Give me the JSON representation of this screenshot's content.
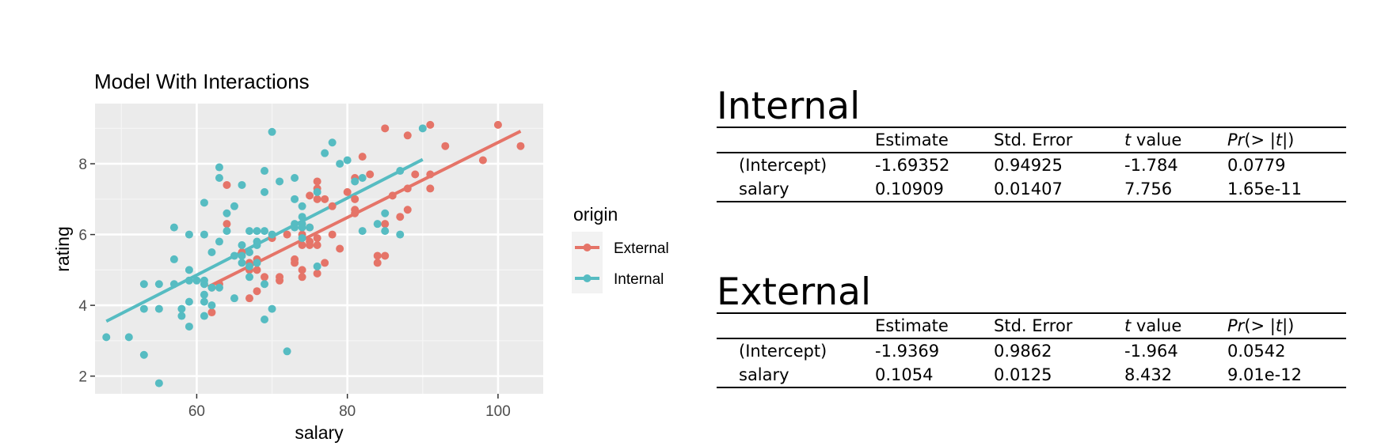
{
  "chart_data": {
    "type": "scatter",
    "title": "Model With Interactions",
    "xlabel": "salary",
    "ylabel": "rating",
    "xlim": [
      46.5,
      106
    ],
    "ylim": [
      1.5,
      9.7
    ],
    "xticks": [
      "60",
      "80",
      "100"
    ],
    "yticks": [
      "2",
      "4",
      "6",
      "8"
    ],
    "grid": true,
    "legend": {
      "title": "origin",
      "placement": "right"
    },
    "series": [
      {
        "name": "External",
        "color": "#E57468",
        "fit": {
          "x": [
            61.5,
            103
          ],
          "y": [
            4.52,
            8.92
          ]
        },
        "points": [
          [
            62,
            4.5
          ],
          [
            62,
            3.8
          ],
          [
            63,
            4.6
          ],
          [
            64,
            6.3
          ],
          [
            64,
            7.4
          ],
          [
            66,
            5.5
          ],
          [
            67,
            5.0
          ],
          [
            67,
            4.2
          ],
          [
            67,
            5.2
          ],
          [
            68,
            5.0
          ],
          [
            68,
            5.3
          ],
          [
            68,
            4.4
          ],
          [
            69,
            4.8
          ],
          [
            70,
            5.9
          ],
          [
            71,
            4.8
          ],
          [
            71,
            4.7
          ],
          [
            72,
            6.0
          ],
          [
            73,
            5.3
          ],
          [
            73,
            5.2
          ],
          [
            74,
            5.7
          ],
          [
            74,
            5.0
          ],
          [
            74,
            4.8
          ],
          [
            74,
            6.0
          ],
          [
            75,
            5.8
          ],
          [
            75,
            6.2
          ],
          [
            75,
            7.1
          ],
          [
            75,
            5.7
          ],
          [
            76,
            5.7
          ],
          [
            76,
            5.9
          ],
          [
            76,
            7.5
          ],
          [
            76,
            7.3
          ],
          [
            76,
            7.0
          ],
          [
            76,
            4.9
          ],
          [
            77,
            5.2
          ],
          [
            77,
            7.0
          ],
          [
            78,
            6.0
          ],
          [
            78,
            6.8
          ],
          [
            79,
            5.6
          ],
          [
            80,
            7.2
          ],
          [
            81,
            6.7
          ],
          [
            81,
            6.6
          ],
          [
            81,
            7.6
          ],
          [
            81,
            7.0
          ],
          [
            82,
            8.2
          ],
          [
            83,
            7.7
          ],
          [
            84,
            5.4
          ],
          [
            84,
            5.2
          ],
          [
            85,
            6.3
          ],
          [
            85,
            5.4
          ],
          [
            85,
            9.0
          ],
          [
            86,
            7.1
          ],
          [
            87,
            6.5
          ],
          [
            88,
            6.7
          ],
          [
            88,
            7.3
          ],
          [
            88,
            8.8
          ],
          [
            89,
            7.7
          ],
          [
            91,
            7.3
          ],
          [
            91,
            7.7
          ],
          [
            91,
            9.1
          ],
          [
            93,
            8.5
          ],
          [
            98,
            8.1
          ],
          [
            100,
            9.1
          ],
          [
            103,
            8.5
          ]
        ]
      },
      {
        "name": "Internal",
        "color": "#56BCC2",
        "fit": {
          "x": [
            48,
            90
          ],
          "y": [
            3.55,
            8.12
          ]
        },
        "points": [
          [
            48,
            3.1
          ],
          [
            51,
            3.1
          ],
          [
            53,
            2.6
          ],
          [
            53,
            4.6
          ],
          [
            53,
            3.9
          ],
          [
            55,
            4.6
          ],
          [
            55,
            3.9
          ],
          [
            55,
            1.8
          ],
          [
            57,
            6.2
          ],
          [
            57,
            5.3
          ],
          [
            57,
            4.6
          ],
          [
            58,
            3.9
          ],
          [
            58,
            3.7
          ],
          [
            59,
            6.0
          ],
          [
            59,
            5.0
          ],
          [
            59,
            4.7
          ],
          [
            59,
            4.1
          ],
          [
            59,
            3.4
          ],
          [
            60,
            4.7
          ],
          [
            61,
            4.7
          ],
          [
            61,
            4.6
          ],
          [
            61,
            6.0
          ],
          [
            61,
            6.9
          ],
          [
            61,
            4.3
          ],
          [
            61,
            4.1
          ],
          [
            61,
            3.7
          ],
          [
            62,
            5.5
          ],
          [
            62,
            4.5
          ],
          [
            62,
            4.0
          ],
          [
            63,
            7.9
          ],
          [
            63,
            7.6
          ],
          [
            63,
            5.8
          ],
          [
            63,
            4.5
          ],
          [
            64,
            6.6
          ],
          [
            64,
            6.1
          ],
          [
            65,
            6.8
          ],
          [
            65,
            5.4
          ],
          [
            65,
            4.2
          ],
          [
            66,
            7.4
          ],
          [
            66,
            5.7
          ],
          [
            66,
            5.4
          ],
          [
            66,
            5.2
          ],
          [
            67,
            6.1
          ],
          [
            67,
            5.5
          ],
          [
            67,
            5.1
          ],
          [
            67,
            4.8
          ],
          [
            68,
            5.7
          ],
          [
            68,
            5.8
          ],
          [
            68,
            6.1
          ],
          [
            68,
            5.2
          ],
          [
            69,
            7.8
          ],
          [
            69,
            7.2
          ],
          [
            69,
            6.1
          ],
          [
            69,
            4.6
          ],
          [
            69,
            3.6
          ],
          [
            70,
            8.9
          ],
          [
            70,
            6.0
          ],
          [
            70,
            3.9
          ],
          [
            71,
            7.5
          ],
          [
            72,
            2.7
          ],
          [
            73,
            7.6
          ],
          [
            73,
            7.0
          ],
          [
            73,
            6.3
          ],
          [
            73,
            6.2
          ],
          [
            74,
            6.8
          ],
          [
            74,
            6.5
          ],
          [
            74,
            6.3
          ],
          [
            74,
            6.2
          ],
          [
            74,
            5.9
          ],
          [
            75,
            6.2
          ],
          [
            76,
            5.1
          ],
          [
            76,
            7.2
          ],
          [
            77,
            8.3
          ],
          [
            78,
            8.6
          ],
          [
            79,
            8.0
          ],
          [
            80,
            8.1
          ],
          [
            81,
            7.5
          ],
          [
            82,
            7.6
          ],
          [
            82,
            6.1
          ],
          [
            84,
            6.3
          ],
          [
            85,
            6.6
          ],
          [
            85,
            6.1
          ],
          [
            87,
            7.8
          ],
          [
            87,
            6.0
          ],
          [
            90,
            9.0
          ]
        ]
      }
    ]
  },
  "tables": [
    {
      "title": "Internal",
      "headers": {
        "estimate": "Estimate",
        "std_error": "Std. Error",
        "t_italic": "t",
        "t_rest": " value",
        "pr_a": "Pr",
        "pr_b": "(> |",
        "pr_c": "t",
        "pr_d": "|)"
      },
      "rows": [
        {
          "term": "(Intercept)",
          "estimate": "-1.69352",
          "std_error": "0.94925",
          "t_value": "-1.784",
          "p_value": "0.0779"
        },
        {
          "term": "salary",
          "estimate": "0.10909",
          "std_error": "0.01407",
          "t_value": "7.756",
          "p_value": "1.65e-11"
        }
      ]
    },
    {
      "title": "External",
      "headers": {
        "estimate": "Estimate",
        "std_error": "Std. Error",
        "t_italic": "t",
        "t_rest": " value",
        "pr_a": "Pr",
        "pr_b": "(> |",
        "pr_c": "t",
        "pr_d": "|)"
      },
      "rows": [
        {
          "term": "(Intercept)",
          "estimate": "-1.9369",
          "std_error": "0.9862",
          "t_value": "-1.964",
          "p_value": "0.0542"
        },
        {
          "term": "salary",
          "estimate": "0.1054",
          "std_error": "0.0125",
          "t_value": "8.432",
          "p_value": "9.01e-12"
        }
      ]
    }
  ]
}
